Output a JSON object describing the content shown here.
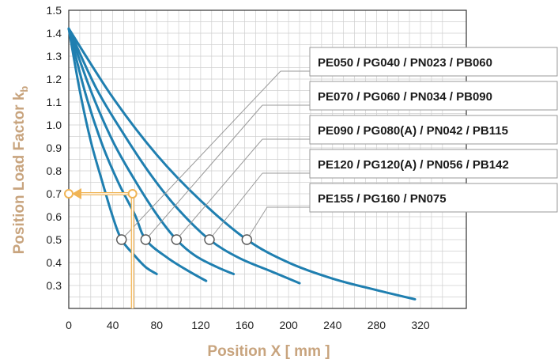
{
  "chart_data": {
    "type": "line",
    "xlabel": "Position X [ mm ]",
    "ylabel": "Position Load Factor k",
    "ylabel_subscript": "b",
    "xlim": [
      0,
      350
    ],
    "ylim": [
      0.2,
      1.5
    ],
    "x_ticks": [
      0,
      40,
      80,
      120,
      160,
      200,
      240,
      280,
      320
    ],
    "y_ticks": [
      0.3,
      0.4,
      0.5,
      0.6,
      0.7,
      0.8,
      0.9,
      1.0,
      1.1,
      1.2,
      1.3,
      1.4,
      1.5
    ],
    "x_tick_labels": [
      "0",
      "40",
      "80",
      "120",
      "160",
      "200",
      "240",
      "280",
      "320"
    ],
    "y_tick_labels": [
      "0.3",
      "0.4",
      "0.5",
      "0.6",
      "0.7",
      "0.8",
      "0.9",
      "1.0",
      "1.1",
      "1.2",
      "1.3",
      "1.4",
      "1.5"
    ],
    "grid": true,
    "series_color": "#1f7fb0",
    "example_color": "#f0b455",
    "series": [
      {
        "name": "PE050 / PG040 / PN023 / PB060",
        "x": [
          0,
          10,
          20,
          30,
          40,
          48,
          60,
          70,
          80
        ],
        "y": [
          1.42,
          1.15,
          0.93,
          0.76,
          0.6,
          0.5,
          0.43,
          0.38,
          0.35
        ]
      },
      {
        "name": "PE070 / PG060 / PN034 / PB090",
        "x": [
          0,
          15,
          30,
          45,
          60,
          70,
          90,
          110,
          125
        ],
        "y": [
          1.42,
          1.14,
          0.92,
          0.75,
          0.61,
          0.5,
          0.42,
          0.36,
          0.32
        ]
      },
      {
        "name": "PE090 / PG080(A) / PN042 / PB115",
        "x": [
          0,
          20,
          40,
          60,
          80,
          98,
          115,
          135,
          150
        ],
        "y": [
          1.42,
          1.15,
          0.93,
          0.76,
          0.61,
          0.5,
          0.43,
          0.38,
          0.35
        ]
      },
      {
        "name": "PE120 / PG120(A) / PN056 / PB142",
        "x": [
          0,
          25,
          50,
          75,
          100,
          128,
          155,
          185,
          210
        ],
        "y": [
          1.42,
          1.16,
          0.96,
          0.78,
          0.63,
          0.5,
          0.42,
          0.36,
          0.31
        ]
      },
      {
        "name": "PE155 / PG160 / PN075",
        "x": [
          0,
          40,
          80,
          120,
          162,
          200,
          240,
          280,
          315
        ],
        "y": [
          1.42,
          1.12,
          0.87,
          0.67,
          0.5,
          0.4,
          0.33,
          0.28,
          0.24
        ]
      }
    ],
    "markers": [
      {
        "x": 48,
        "y": 0.5
      },
      {
        "x": 70,
        "y": 0.5
      },
      {
        "x": 98,
        "y": 0.5
      },
      {
        "x": 128,
        "y": 0.5
      },
      {
        "x": 162,
        "y": 0.5
      }
    ],
    "example": {
      "x": 58,
      "y": 0.7
    }
  }
}
